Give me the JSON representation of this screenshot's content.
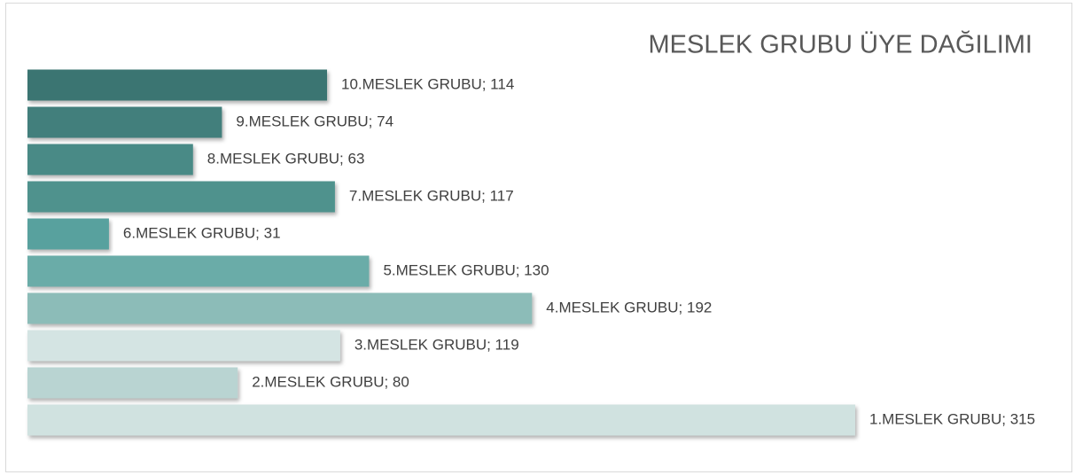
{
  "chart_data": {
    "type": "bar",
    "orientation": "horizontal",
    "title": "MESLEK GRUBU ÜYE DAĞILIMI",
    "values": [
      114,
      74,
      63,
      117,
      31,
      130,
      192,
      119,
      80,
      315
    ],
    "value_labels": [
      "10.MESLEK GRUBU; 114",
      "9.MESLEK GRUBU; 74",
      "8.MESLEK GRUBU; 63",
      "7.MESLEK GRUBU; 117",
      "6.MESLEK GRUBU; 31",
      "5.MESLEK GRUBU; 130",
      "4.MESLEK GRUBU; 192",
      "3.MESLEK GRUBU; 119",
      "2.MESLEK GRUBU; 80",
      "1.MESLEK GRUBU; 315"
    ],
    "colors": [
      "#3a7572",
      "#437f7c",
      "#4a8a86",
      "#4f928d",
      "#58a19e",
      "#6aaca8",
      "#8cbcb8",
      "#d4e4e3",
      "#b9d4d2",
      "#d0e2e0"
    ]
  }
}
